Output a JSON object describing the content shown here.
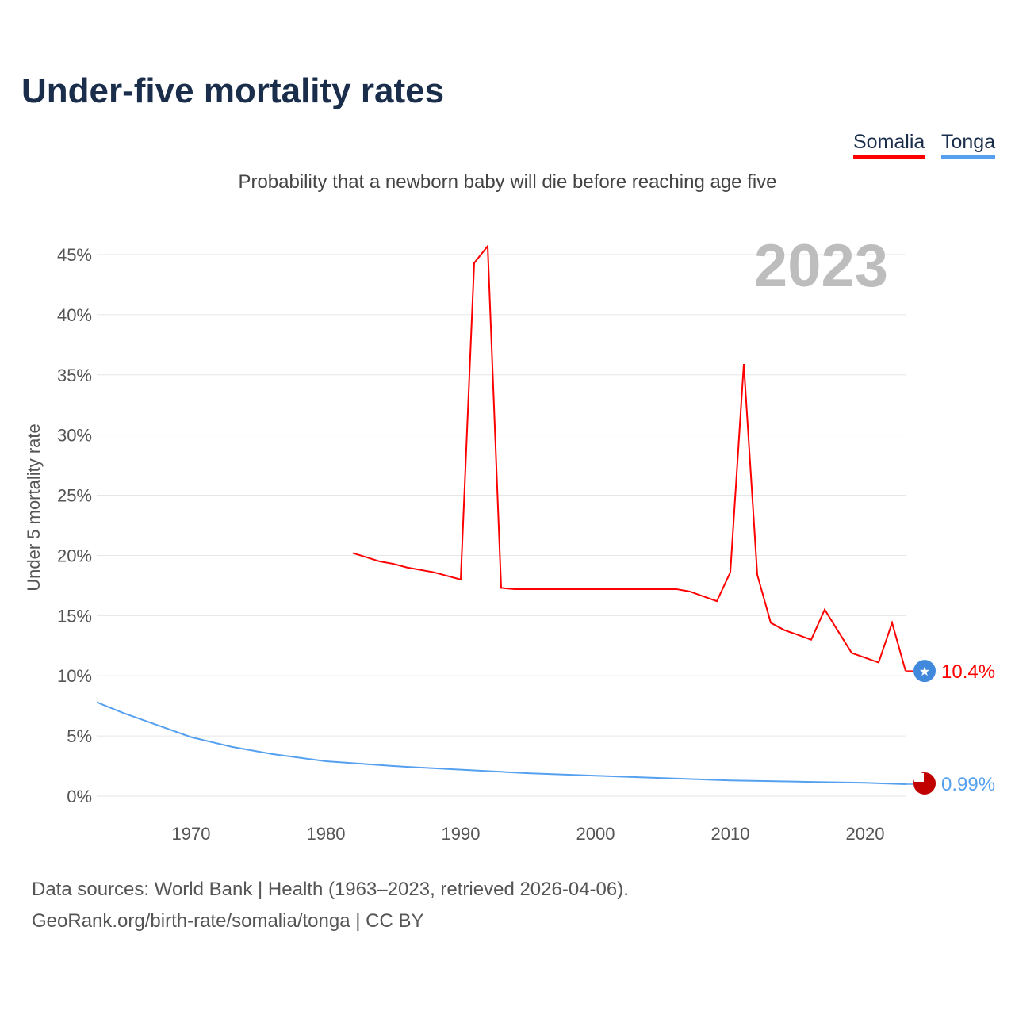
{
  "title": "Under-five mortality rates",
  "legend": [
    {
      "name": "Somalia",
      "color": "#ff0000"
    },
    {
      "name": "Tonga",
      "color": "#55a0ef"
    }
  ],
  "subtitle": "Probability that a newborn baby will die before reaching age five",
  "year_label": "2023",
  "sources": [
    "Data sources: World Bank | Health (1963–2023, retrieved 2026-04-06).",
    "GeoRank.org/birth-rate/somalia/tonga | CC BY"
  ],
  "chart_data": {
    "type": "line",
    "title": "Under-five mortality rates",
    "ylabel": "Under 5 mortality rate",
    "xlabel": "",
    "xlim": [
      1963,
      2023
    ],
    "ylim": [
      0,
      45
    ],
    "yticks": [
      "0%",
      "5%",
      "10%",
      "15%",
      "20%",
      "25%",
      "30%",
      "35%",
      "40%",
      "45%"
    ],
    "xticks": [
      "1970",
      "1980",
      "1990",
      "2000",
      "2010",
      "2020"
    ],
    "grid": true,
    "series": [
      {
        "name": "Somalia",
        "color": "#ff0000",
        "end_label": "10.4%",
        "x": [
          1982,
          1984,
          1985,
          1986,
          1988,
          1990,
          1991,
          1992,
          1993,
          1994,
          2006,
          2007,
          2008,
          2009,
          2010,
          2011,
          2012,
          2013,
          2014,
          2015,
          2016,
          2017,
          2018,
          2019,
          2020,
          2021,
          2022,
          2023
        ],
        "y": [
          20.2,
          19.5,
          19.3,
          19.0,
          18.6,
          18.0,
          44.3,
          45.7,
          17.3,
          17.2,
          17.2,
          17.0,
          16.6,
          16.2,
          18.6,
          35.9,
          18.4,
          14.4,
          13.8,
          13.4,
          13.0,
          15.5,
          13.7,
          11.9,
          11.5,
          11.1,
          14.4,
          10.4
        ]
      },
      {
        "name": "Tonga",
        "color": "#55a0ef",
        "end_label": "0.99%",
        "x": [
          1963,
          1965,
          1967,
          1970,
          1973,
          1976,
          1980,
          1985,
          1990,
          1995,
          2000,
          2005,
          2010,
          2015,
          2020,
          2023
        ],
        "y": [
          7.8,
          6.9,
          6.1,
          4.9,
          4.1,
          3.5,
          2.9,
          2.5,
          2.2,
          1.9,
          1.7,
          1.5,
          1.3,
          1.2,
          1.1,
          0.99
        ]
      }
    ]
  }
}
